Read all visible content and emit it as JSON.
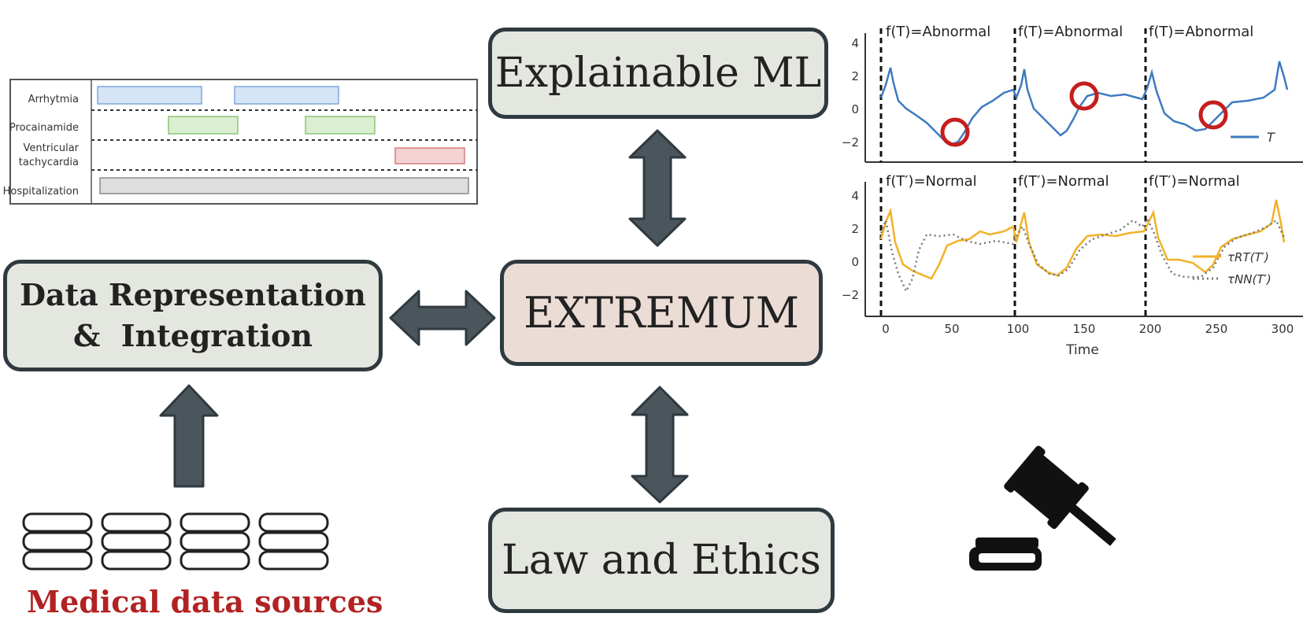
{
  "boxes": {
    "explainable": "Explainable ML",
    "extremum": "EXTREMUM",
    "data_rep_line1": "Data Representation",
    "data_rep_line2": "&  Integration",
    "law": "Law and Ethics"
  },
  "sources_label": "Medical data sources",
  "timeline": {
    "rows": [
      "Arrhytmia",
      "Procainamide",
      "Ventricular",
      "tachycardia",
      "Hospitalization"
    ],
    "colors": {
      "arrhythmia": "#d6e4f7",
      "procainamide": "#d9efd0",
      "vt": "#f4d2d2",
      "hosp": "#dedede"
    }
  },
  "ecg": {
    "top_labels": [
      "f(T)=Abnormal",
      "f(T)=Abnormal",
      "f(T)=Abnormal"
    ],
    "bottom_labels": [
      "f(T′)=Normal",
      "f(T′)=Normal",
      "f(T′)=Normal"
    ],
    "y_ticks_top": [
      "4",
      "2",
      "0",
      "−2"
    ],
    "y_ticks_bottom": [
      "4",
      "2",
      "0",
      "−2"
    ],
    "x_ticks": [
      "0",
      "50",
      "100",
      "150",
      "200",
      "250",
      "300"
    ],
    "xlabel": "Time",
    "legend_top": "T",
    "legend_rt": "τRT(T′)",
    "legend_nn": "τNN(T′)",
    "colors": {
      "T": "#3f7ac0",
      "rt": "#f2b126",
      "nn": "#777777",
      "circle": "#c41e1e"
    }
  },
  "icons": [
    "database-icon",
    "gavel-icon"
  ]
}
